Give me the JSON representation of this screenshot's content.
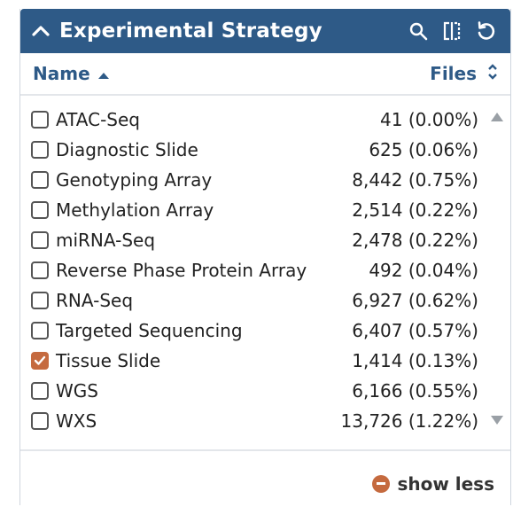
{
  "header": {
    "title": "Experimental Strategy",
    "icons": [
      "chevron-up-icon",
      "search-icon",
      "column-toggle-icon",
      "reset-icon"
    ]
  },
  "columns": {
    "name": "Name",
    "files": "Files"
  },
  "items": [
    {
      "label": "ATAC-Seq",
      "count": "41 (0.00%)",
      "checked": false
    },
    {
      "label": "Diagnostic Slide",
      "count": "625 (0.06%)",
      "checked": false
    },
    {
      "label": "Genotyping Array",
      "count": "8,442 (0.75%)",
      "checked": false
    },
    {
      "label": "Methylation Array",
      "count": "2,514 (0.22%)",
      "checked": false
    },
    {
      "label": "miRNA-Seq",
      "count": "2,478 (0.22%)",
      "checked": false
    },
    {
      "label": "Reverse Phase Protein Array",
      "count": "492 (0.04%)",
      "checked": false
    },
    {
      "label": "RNA-Seq",
      "count": "6,927 (0.62%)",
      "checked": false
    },
    {
      "label": "Targeted Sequencing",
      "count": "6,407 (0.57%)",
      "checked": false
    },
    {
      "label": "Tissue Slide",
      "count": "1,414 (0.13%)",
      "checked": true
    },
    {
      "label": "WGS",
      "count": "6,166 (0.55%)",
      "checked": false
    },
    {
      "label": "WXS",
      "count": "13,726 (1.22%)",
      "checked": false
    }
  ],
  "footer": {
    "show_less_label": "show less"
  },
  "colors": {
    "header_bg": "#2e5a87",
    "accent": "#c56a3f"
  }
}
